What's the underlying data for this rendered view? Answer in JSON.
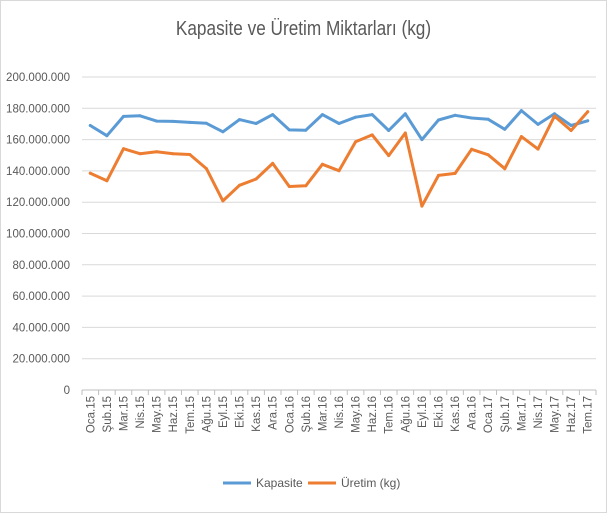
{
  "chart_data": {
    "type": "line",
    "title": "Kapasite ve Üretim Miktarları (kg)",
    "xlabel": "",
    "ylabel": "",
    "ylim": [
      0,
      200000000
    ],
    "yticks": [
      0,
      20000000,
      40000000,
      60000000,
      80000000,
      100000000,
      120000000,
      140000000,
      160000000,
      180000000,
      200000000
    ],
    "ytick_labels": [
      "0",
      "20.000.000",
      "40.000.000",
      "60.000.000",
      "80.000.000",
      "100.000.000",
      "120.000.000",
      "140.000.000",
      "160.000.000",
      "180.000.000",
      "200.000.000"
    ],
    "grid": true,
    "legend_position": "bottom",
    "categories": [
      "Oca.15",
      "Şub.15",
      "Mar.15",
      "Nis.15",
      "May.15",
      "Haz.15",
      "Tem.15",
      "Ağu.15",
      "Eyl.15",
      "Eki.15",
      "Kas.15",
      "Ara.15",
      "Oca.16",
      "Şub.16",
      "Mar.16",
      "Nis.16",
      "May.16",
      "Haz.16",
      "Tem.16",
      "Ağu.16",
      "Eyl.16",
      "Eki.16",
      "Kas.16",
      "Ara.16",
      "Oca.17",
      "Şub.17",
      "Mar.17",
      "Nis.17",
      "May.17",
      "Haz.17",
      "Tem.17"
    ],
    "series": [
      {
        "name": "Kapasite",
        "color": "#5b9bd5",
        "values": [
          169000000,
          162500000,
          174800000,
          175200000,
          171800000,
          171600000,
          171000000,
          170400000,
          165000000,
          172800000,
          170300000,
          176000000,
          166200000,
          166000000,
          176000000,
          170300000,
          174300000,
          176000000,
          165800000,
          176500000,
          160000000,
          172500000,
          175500000,
          173800000,
          173000000,
          166600000,
          178500000,
          169700000,
          176500000,
          169000000,
          172000000
        ]
      },
      {
        "name": "Üretim (kg)",
        "color": "#ed7d31",
        "values": [
          138500000,
          133700000,
          154200000,
          151000000,
          152300000,
          151000000,
          150500000,
          141500000,
          120800000,
          130800000,
          134800000,
          144800000,
          130000000,
          130500000,
          144200000,
          140100000,
          158600000,
          163000000,
          149800000,
          164200000,
          117500000,
          137100000,
          138400000,
          153800000,
          150300000,
          141400000,
          161900000,
          153900000,
          175000000,
          165800000,
          177800000
        ]
      }
    ]
  }
}
